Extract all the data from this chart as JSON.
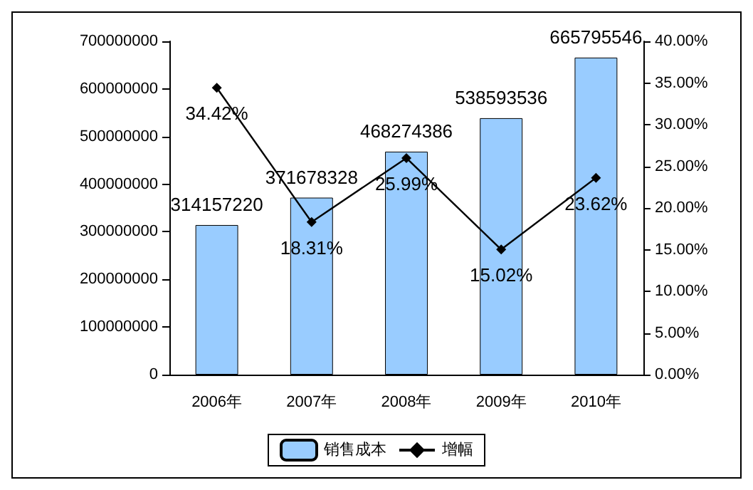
{
  "chart_data": {
    "type": "bar",
    "categories": [
      "2006年",
      "2007年",
      "2008年",
      "2009年",
      "2010年"
    ],
    "series": [
      {
        "name": "销售成本",
        "type": "bar",
        "color": "#99ccff",
        "values": [
          314157220,
          371678328,
          468274386,
          538593536,
          665795546
        ],
        "value_labels": [
          "314157220",
          "371678328",
          "468274386",
          "538593536",
          "665795546"
        ]
      },
      {
        "name": "增幅",
        "type": "line",
        "axis": "y2",
        "color": "#000000",
        "marker": "diamond",
        "values": [
          34.42,
          18.31,
          25.99,
          15.02,
          23.62
        ],
        "value_labels": [
          "34.42%",
          "18.31%",
          "25.99%",
          "15.02%",
          "23.62%"
        ]
      }
    ],
    "ylim": [
      0,
      700000000
    ],
    "yticks": [
      0,
      100000000,
      200000000,
      300000000,
      400000000,
      500000000,
      600000000,
      700000000
    ],
    "y2lim": [
      0,
      40
    ],
    "y2ticks": [
      {
        "value": 0,
        "label": "0.00%"
      },
      {
        "value": 5,
        "label": "5.00%"
      },
      {
        "value": 10,
        "label": "10.00%"
      },
      {
        "value": 15,
        "label": "15.00%"
      },
      {
        "value": 20,
        "label": "20.00%"
      },
      {
        "value": 25,
        "label": "25.00%"
      },
      {
        "value": 30,
        "label": "30.00%"
      },
      {
        "value": 35,
        "label": "35.00%"
      },
      {
        "value": 40,
        "label": "40.00%"
      }
    ],
    "grid": false,
    "legend": "bottom"
  }
}
